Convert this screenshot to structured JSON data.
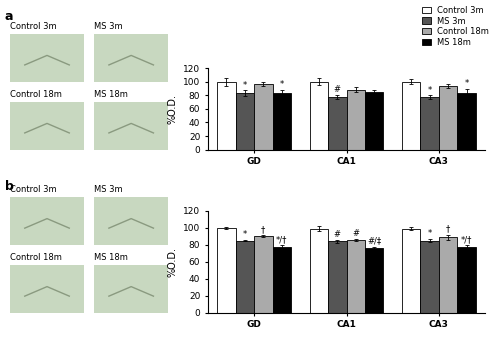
{
  "chart_data": [
    {
      "type": "bar",
      "title": "a",
      "y_label": "%O.D.",
      "categories": [
        "GD",
        "CA1",
        "CA3"
      ],
      "ylim": [
        0,
        120
      ],
      "yticks": [
        0,
        20,
        40,
        60,
        80,
        100,
        120
      ],
      "legend": "upper right",
      "image_labels": [
        "Control 3m",
        "MS 3m",
        "Control 18m",
        "MS 18m"
      ],
      "series": [
        {
          "name": "Control 3m",
          "color": "#ffffff",
          "values": [
            100,
            100,
            100
          ],
          "errors": [
            6,
            5,
            4
          ],
          "annotations": [
            null,
            null,
            null
          ]
        },
        {
          "name": "MS 3m",
          "color": "#555555",
          "values": [
            83,
            78,
            77
          ],
          "errors": [
            4,
            3,
            3
          ],
          "annotations": [
            "*",
            "#",
            "*"
          ]
        },
        {
          "name": "Control 18m",
          "color": "#aaaaaa",
          "values": [
            96,
            88,
            93
          ],
          "errors": [
            3,
            4,
            3
          ],
          "annotations": [
            null,
            null,
            null
          ]
        },
        {
          "name": "MS 18m",
          "color": "#000000",
          "values": [
            83,
            84,
            83
          ],
          "errors": [
            5,
            4,
            6
          ],
          "annotations": [
            "*",
            null,
            "*"
          ]
        }
      ]
    },
    {
      "type": "bar",
      "title": "b",
      "y_label": "%O.D.",
      "categories": [
        "GD",
        "CA1",
        "CA3"
      ],
      "ylim": [
        0,
        120
      ],
      "yticks": [
        0,
        20,
        40,
        60,
        80,
        100,
        120
      ],
      "image_labels": [
        "Control 3m",
        "MS 3m",
        "Control 18m",
        "MS 18m"
      ],
      "series": [
        {
          "name": "Control 3m",
          "color": "#ffffff",
          "values": [
            100,
            99,
            99
          ],
          "errors": [
            1,
            3,
            2
          ],
          "annotations": [
            null,
            null,
            null
          ]
        },
        {
          "name": "MS 3m",
          "color": "#555555",
          "values": [
            85,
            84,
            85
          ],
          "errors": [
            1,
            2,
            2
          ],
          "annotations": [
            "*",
            "#",
            "*"
          ]
        },
        {
          "name": "Control 18m",
          "color": "#aaaaaa",
          "values": [
            90,
            86,
            89
          ],
          "errors": [
            1,
            1,
            3
          ],
          "annotations": [
            "†",
            "#",
            "†"
          ]
        },
        {
          "name": "MS 18m",
          "color": "#000000",
          "values": [
            78,
            76,
            78
          ],
          "errors": [
            2,
            2,
            2
          ],
          "annotations": [
            "*/†",
            "#/‡",
            "*/†"
          ]
        }
      ]
    }
  ]
}
